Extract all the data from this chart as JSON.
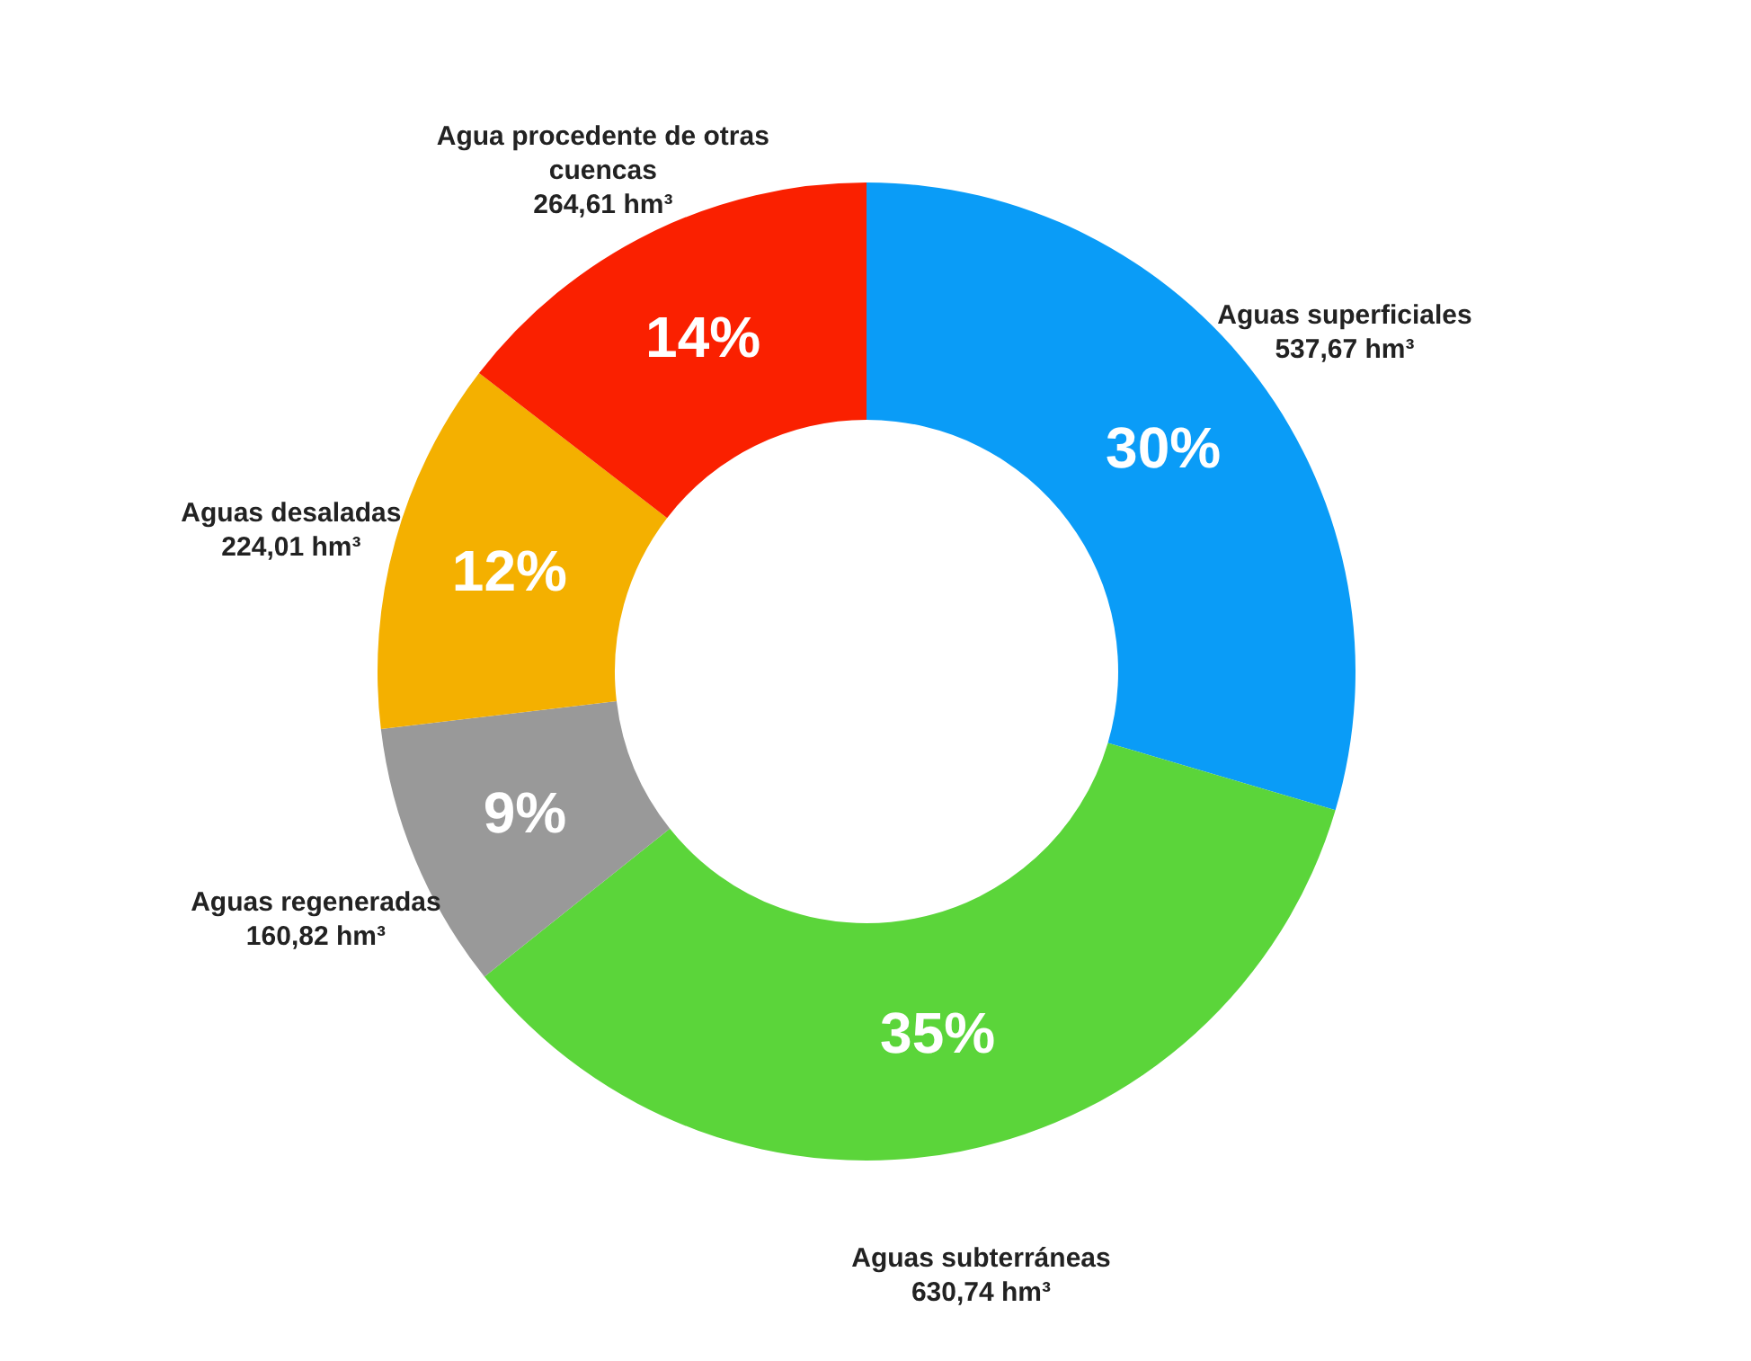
{
  "chart_data": {
    "type": "donut",
    "categories": [
      "Aguas superficiales",
      "Aguas subterráneas",
      "Aguas regeneradas",
      "Aguas desaladas",
      "Agua procedente de otras cuencas"
    ],
    "values": [
      537.67,
      630.74,
      160.82,
      224.01,
      264.61
    ],
    "value_labels": [
      "537,67 hm³",
      "630,74 hm³",
      "160,82 hm³",
      "224,01 hm³",
      "264,61 hm³"
    ],
    "colors": [
      "#0a9cf7",
      "#5bd53a",
      "#999999",
      "#f4b000",
      "#fa2000"
    ],
    "annotations": [
      "30%",
      "35%",
      "9%",
      "12%",
      "14%"
    ],
    "legend": false
  }
}
